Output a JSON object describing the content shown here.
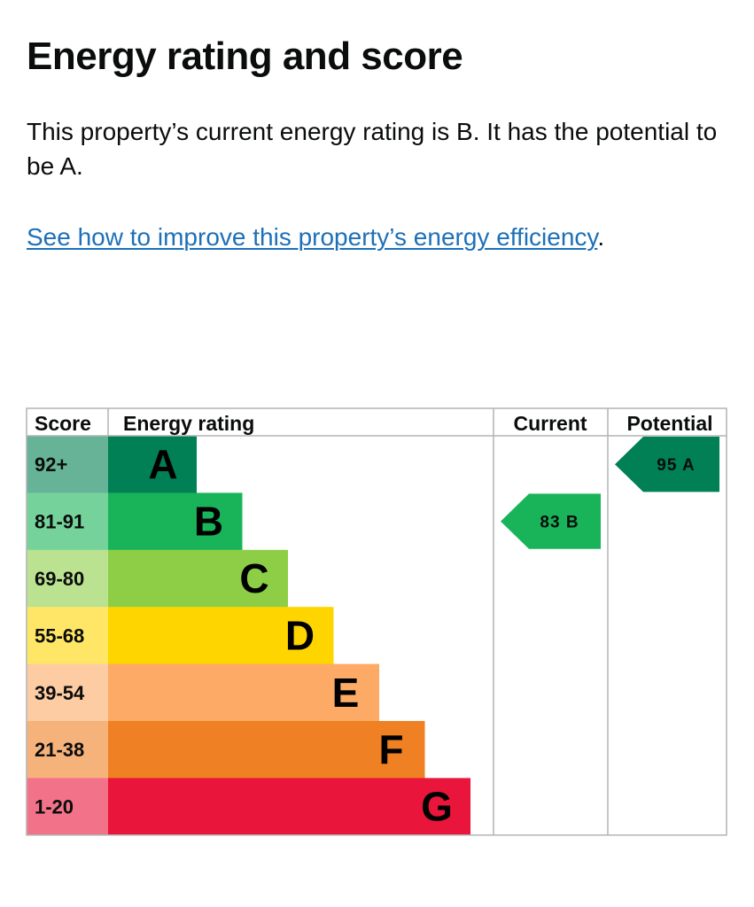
{
  "page": {
    "title": "Energy rating and score",
    "intro": "This property’s current energy rating is B. It has the potential to be A.",
    "link_text": "See how to improve this property’s energy efficiency",
    "link_suffix": "."
  },
  "chart_data": {
    "type": "table",
    "headers": {
      "score": "Score",
      "rating": "Energy rating",
      "current": "Current",
      "potential": "Potential"
    },
    "bands": [
      {
        "letter": "A",
        "range": "92+",
        "color": "#008054",
        "tint": "#66b398"
      },
      {
        "letter": "B",
        "range": "81-91",
        "color": "#19b459",
        "tint": "#75d29b"
      },
      {
        "letter": "C",
        "range": "69-80",
        "color": "#8dce46",
        "tint": "#bbe290"
      },
      {
        "letter": "D",
        "range": "55-68",
        "color": "#ffd500",
        "tint": "#ffe666"
      },
      {
        "letter": "E",
        "range": "39-54",
        "color": "#fcaa65",
        "tint": "#fdcca3"
      },
      {
        "letter": "F",
        "range": "21-38",
        "color": "#ef8023",
        "tint": "#f5b37b"
      },
      {
        "letter": "G",
        "range": "1-20",
        "color": "#e9153b",
        "tint": "#f27389"
      }
    ],
    "current": {
      "score": 83,
      "letter": "B",
      "label": "83 B"
    },
    "potential": {
      "score": 95,
      "letter": "A",
      "label": "95 A"
    }
  }
}
